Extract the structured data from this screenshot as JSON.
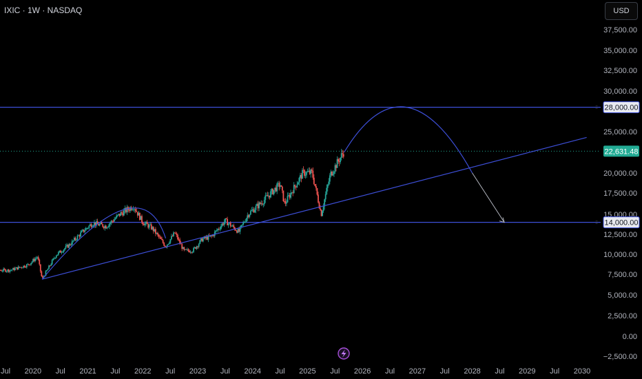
{
  "header": {
    "symbol_title": "IXIC · 1W · NASDAQ",
    "currency": "USD"
  },
  "colors": {
    "up": "#26a69a",
    "down": "#ef5350",
    "drawing": "#3d4fd8",
    "arrow": "#b2b5be",
    "last_price": "#22ab94"
  },
  "icons": {
    "bottom": "lightning-icon"
  },
  "chart_data": {
    "type": "candlestick",
    "timeframe": "1W",
    "x_ticks": [
      "Jul",
      "2020",
      "Jul",
      "2021",
      "Jul",
      "2022",
      "Jul",
      "2023",
      "Jul",
      "2024",
      "Jul",
      "2025",
      "Jul",
      "2026",
      "Jul",
      "2027",
      "Jul",
      "2028",
      "Jul",
      "2029",
      "Jul",
      "2030"
    ],
    "x_range": [
      "2019-07",
      "2030-01"
    ],
    "y_ticks": [
      "37,500.00",
      "35,000.00",
      "32,500.00",
      "30,000.00",
      "25,000.00",
      "20,000.00",
      "17,500.00",
      "15,000.00",
      "12,500.00",
      "10,000.00",
      "7,500.00",
      "5,000.00",
      "2,500.00",
      "0.00",
      "−2,500.00"
    ],
    "ylim": [
      -3200,
      38500
    ],
    "price_labels": [
      {
        "value": 28000,
        "label": "28,000.00",
        "style": "horizontal-line"
      },
      {
        "value": 22631.48,
        "label": "22,631.48",
        "style": "last-price"
      },
      {
        "value": 14000,
        "label": "14,000.00",
        "style": "horizontal-line"
      }
    ],
    "price_path": [
      [
        "2019-08",
        8000
      ],
      [
        "2019-12",
        8700
      ],
      [
        "2020-02",
        9700
      ],
      [
        "2020-03",
        6900
      ],
      [
        "2020-06",
        9900
      ],
      [
        "2020-09",
        11200
      ],
      [
        "2020-12",
        12900
      ],
      [
        "2021-02",
        13900
      ],
      [
        "2021-05",
        13500
      ],
      [
        "2021-08",
        15000
      ],
      [
        "2021-11",
        16000
      ],
      [
        "2022-01",
        14000
      ],
      [
        "2022-03",
        13300
      ],
      [
        "2022-06",
        11000
      ],
      [
        "2022-08",
        12700
      ],
      [
        "2022-10",
        10400
      ],
      [
        "2022-12",
        10500
      ],
      [
        "2023-02",
        11900
      ],
      [
        "2023-04",
        12200
      ],
      [
        "2023-07",
        14200
      ],
      [
        "2023-10",
        12800
      ],
      [
        "2023-12",
        15000
      ],
      [
        "2024-03",
        16400
      ],
      [
        "2024-07",
        18600
      ],
      [
        "2024-08",
        16200
      ],
      [
        "2024-12",
        20000
      ],
      [
        "2025-02",
        20000
      ],
      [
        "2025-04",
        15000
      ],
      [
        "2025-06",
        19800
      ],
      [
        "2025-09",
        22631.48
      ]
    ],
    "drawings": {
      "horizontal_lines": [
        28000,
        14000
      ],
      "trendline": {
        "from": [
          "2020-03",
          6900
        ],
        "to": [
          "2030-02",
          24300
        ]
      },
      "arc_2020_2022": {
        "from": [
          "2020-03",
          6900
        ],
        "peak": [
          "2021-09",
          15500
        ],
        "to": [
          "2022-06",
          12000
        ]
      },
      "arc_projection": {
        "from": [
          "2025-09",
          22500
        ],
        "peak": [
          "2026-11",
          28000
        ],
        "to": [
          "2028-01",
          20000
        ]
      },
      "arrow": {
        "from": [
          "2028-01",
          20000
        ],
        "to": [
          "2028-08",
          14000
        ]
      }
    }
  }
}
